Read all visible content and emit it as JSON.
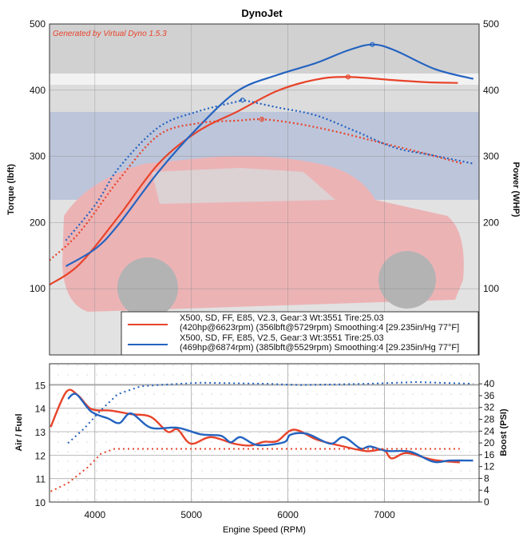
{
  "chart_data": [
    {
      "type": "line",
      "title": "DynoJet",
      "watermark": "Generated by Virtual Dyno 1.5.3",
      "xlabel": "",
      "ylabel": "Torque (lbft)",
      "ylabel_right": "Power (WHP)",
      "xlim": [
        3530,
        7980
      ],
      "ylim": [
        0,
        500
      ],
      "ylim_right": [
        0,
        500
      ],
      "yticks": [
        100,
        200,
        300,
        400,
        500
      ],
      "grid": true,
      "legend_placement": "bottom-right",
      "legend": [
        {
          "line1": "X500, SD, FF, E85, V2.3,  Gear:3 Wt:3551 Tire:25.03",
          "line2": "(420hp@6623rpm) (356lbft@5729rpm) Smoothing:4 [29.235in/Hg 77°F]",
          "color": "#e8432a"
        },
        {
          "line1": "X500, SD, FF, E85, V2.5,  Gear:3 Wt:3551 Tire:25.03",
          "line2": "(469hp@6874rpm) (385lbft@5529rpm) Smoothing:4 [29.235in/Hg 77°F]",
          "color": "#2463c0"
        }
      ],
      "series": [
        {
          "run": "V2.3",
          "measure": "power",
          "style": "solid",
          "color": "#e8432a",
          "x": [
            3530,
            3840,
            4250,
            4660,
            5070,
            5480,
            5890,
            6290,
            6623,
            7110,
            7440,
            7760
          ],
          "y": [
            106,
            137,
            210,
            289,
            338,
            368,
            399,
            416,
            420,
            415,
            412,
            411
          ],
          "peak": [
            6623,
            420
          ]
        },
        {
          "run": "V2.5",
          "measure": "power",
          "style": "solid",
          "color": "#2463c0",
          "x": [
            3700,
            4010,
            4250,
            4660,
            5070,
            5480,
            5890,
            6290,
            6620,
            6874,
            7110,
            7520,
            7920
          ],
          "y": [
            134,
            161,
            198,
            277,
            344,
            399,
            423,
            441,
            460,
            469,
            460,
            432,
            417
          ],
          "peak": [
            6874,
            469
          ]
        },
        {
          "run": "V2.3",
          "measure": "torque",
          "style": "dotted",
          "color": "#e8432a",
          "x": [
            3530,
            3840,
            4250,
            4660,
            5070,
            5480,
            5729,
            6070,
            6480,
            6980,
            7400,
            7810
          ],
          "y": [
            143,
            185,
            265,
            332,
            350,
            354,
            356,
            350,
            338,
            320,
            305,
            289
          ],
          "peak": [
            5729,
            356
          ]
        },
        {
          "run": "V2.5",
          "measure": "torque",
          "style": "dotted",
          "color": "#2463c0",
          "x": [
            3700,
            4010,
            4250,
            4660,
            5070,
            5480,
            5529,
            5890,
            6290,
            6700,
            7110,
            7520,
            7920
          ],
          "y": [
            173,
            228,
            283,
            344,
            368,
            383,
            385,
            374,
            362,
            338,
            313,
            301,
            289
          ],
          "peak": [
            5529,
            385
          ]
        }
      ]
    },
    {
      "type": "line",
      "xlabel": "Engine Speed (RPM)",
      "ylabel": "Air / Fuel",
      "ylabel_right": "Boost (PSI)",
      "xlim": [
        3530,
        7980
      ],
      "xticks": [
        4000,
        5000,
        6000,
        7000
      ],
      "ylim": [
        10,
        15.9
      ],
      "yticks": [
        10,
        11,
        12,
        13,
        14,
        15
      ],
      "ylim_right": [
        0,
        46.8
      ],
      "yticks_right": [
        0,
        4,
        8,
        12,
        16,
        20,
        24,
        28,
        32,
        36,
        40
      ],
      "grid": true,
      "series": [
        {
          "run": "V2.3",
          "measure": "afr",
          "axis": "left",
          "style": "solid",
          "color": "#e8432a",
          "x": [
            3542,
            3704,
            3825,
            3962,
            4168,
            4375,
            4581,
            4753,
            4856,
            4994,
            5200,
            5441,
            5613,
            5751,
            5888,
            6060,
            6301,
            6577,
            6817,
            6989,
            7075,
            7230,
            7505,
            7780
          ],
          "y": [
            13.2,
            14.7,
            14.55,
            13.97,
            13.9,
            13.75,
            13.63,
            13.0,
            13.1,
            12.49,
            12.77,
            12.49,
            12.41,
            12.57,
            12.6,
            13.09,
            12.66,
            12.37,
            12.17,
            12.23,
            11.86,
            12.09,
            11.8,
            11.69
          ]
        },
        {
          "run": "V2.5",
          "measure": "afr",
          "axis": "left",
          "style": "solid",
          "color": "#2463c0",
          "x": [
            3721,
            3807,
            3962,
            4134,
            4255,
            4375,
            4581,
            4856,
            5097,
            5304,
            5407,
            5510,
            5682,
            5957,
            6026,
            6198,
            6439,
            6577,
            6749,
            6852,
            7024,
            7265,
            7505,
            7677,
            7918
          ],
          "y": [
            14.4,
            14.6,
            13.86,
            13.57,
            13.37,
            13.78,
            13.17,
            13.17,
            12.89,
            12.83,
            12.55,
            12.77,
            12.43,
            12.55,
            12.87,
            12.91,
            12.49,
            12.77,
            12.29,
            12.37,
            12.18,
            12.15,
            11.72,
            11.77,
            11.77
          ]
        },
        {
          "run": "V2.3",
          "measure": "boost",
          "axis": "right",
          "style": "dotted",
          "color": "#e8432a",
          "x": [
            3542,
            3721,
            3928,
            4065,
            4203,
            5000,
            6000,
            7000,
            7780
          ],
          "y": [
            3.6,
            6.4,
            11.8,
            16.4,
            18,
            18,
            18,
            18,
            18
          ]
        },
        {
          "run": "V2.5",
          "measure": "boost",
          "axis": "right",
          "style": "dotted",
          "color": "#2463c0",
          "x": [
            3721,
            3893,
            4065,
            4237,
            4478,
            4753,
            5097,
            5785,
            6129,
            6817,
            7333,
            7918
          ],
          "y": [
            19.9,
            25,
            31.2,
            36.5,
            39.2,
            39.8,
            40.4,
            40,
            39.6,
            40,
            40.6,
            40
          ]
        }
      ]
    }
  ]
}
